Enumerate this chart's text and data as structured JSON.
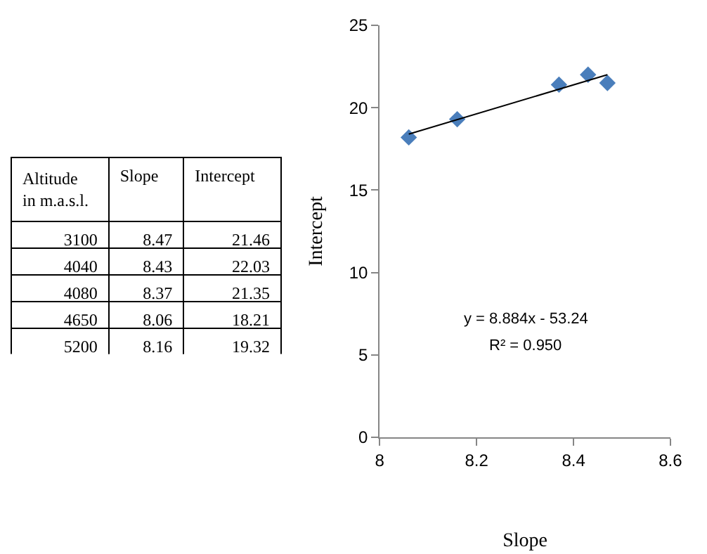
{
  "chart_data": [
    {
      "type": "other",
      "annotations": [
        "Altitude in m.a.s.l.",
        "Slope",
        "Intercept",
        "3100",
        "8.47",
        "21.46",
        "4040",
        "8.43",
        "22.03",
        "4080",
        "8.37",
        "21.35",
        "4650",
        "8.06",
        "18.21",
        "5200",
        "8.16",
        "19.32"
      ]
    },
    {
      "type": "scatter",
      "xlabel": "Slope",
      "ylabel": "Intercept",
      "marker": "diamond",
      "xlim": [
        8,
        8.6
      ],
      "xticks": [
        8,
        8.2,
        8.4,
        8.6
      ],
      "ylim": [
        0,
        25
      ],
      "yticks": [
        0,
        5,
        10,
        15,
        20,
        25
      ],
      "series": [
        {
          "color": "#4a7ebb",
          "x": [
            8.47,
            8.43,
            8.37,
            8.06,
            8.16
          ],
          "values": [
            21.5,
            22.0,
            21.4,
            18.2,
            19.3
          ]
        },
        {
          "type": "line",
          "marker": "none",
          "color": "#000000",
          "x": [
            8.06,
            8.47
          ],
          "values": [
            18.4,
            22.0
          ]
        }
      ],
      "annotations": [
        "y = 8.884x - 53.24",
        "R² = 0.950"
      ]
    }
  ]
}
